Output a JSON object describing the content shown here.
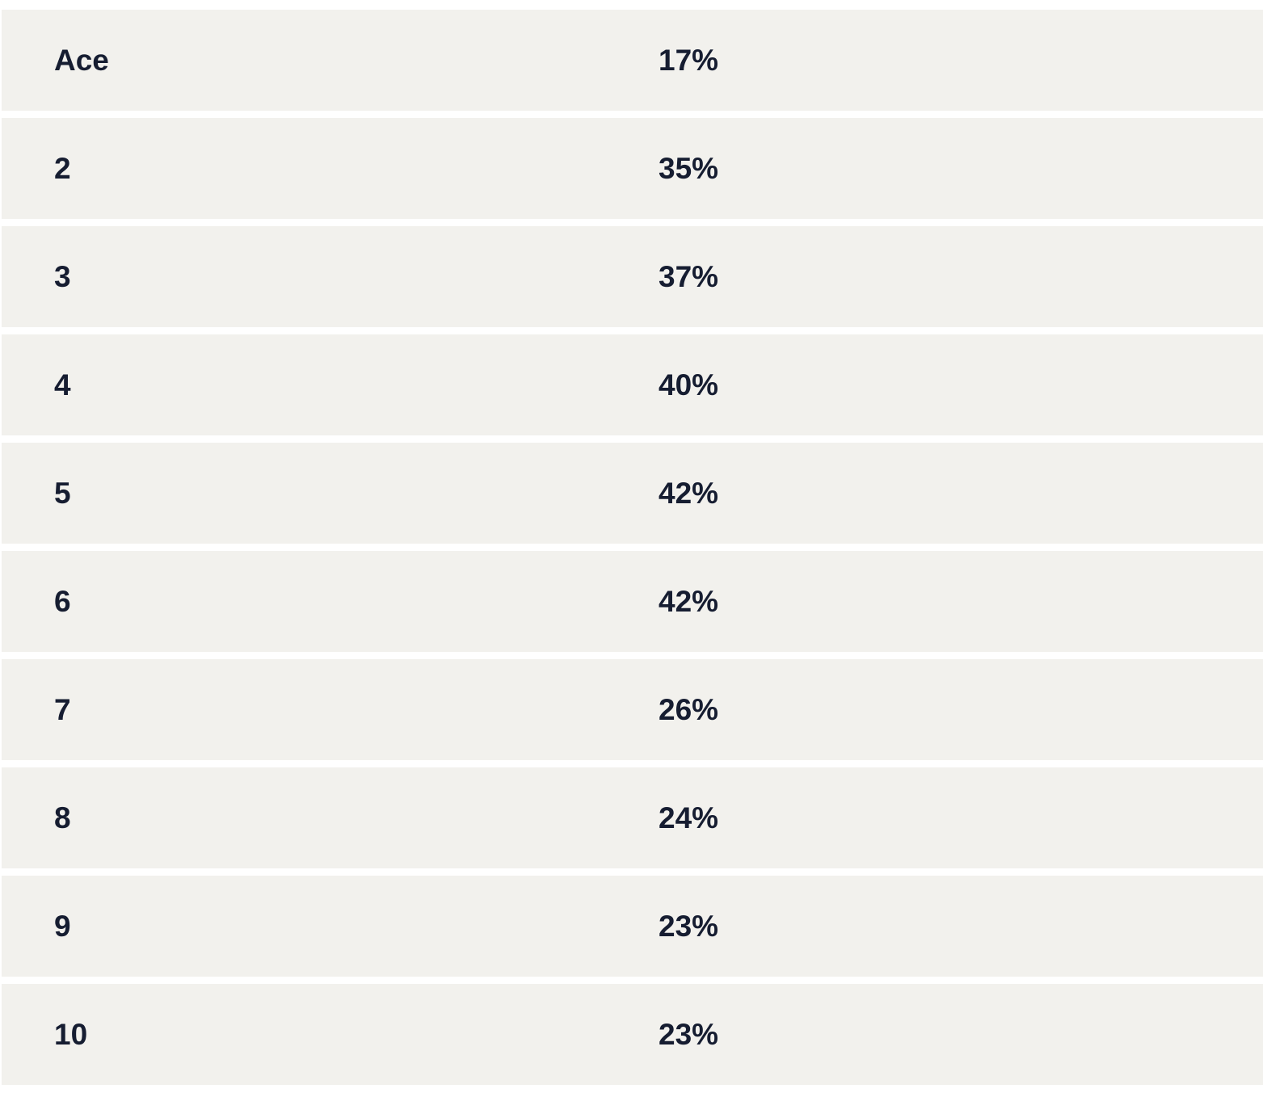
{
  "table": {
    "rows": [
      {
        "label": "Ace",
        "value": "17%"
      },
      {
        "label": "2",
        "value": "35%"
      },
      {
        "label": "3",
        "value": "37%"
      },
      {
        "label": "4",
        "value": "40%"
      },
      {
        "label": "5",
        "value": "42%"
      },
      {
        "label": "6",
        "value": "42%"
      },
      {
        "label": "7",
        "value": "26%"
      },
      {
        "label": "8",
        "value": "24%"
      },
      {
        "label": "9",
        "value": "23%"
      },
      {
        "label": "10",
        "value": "23%"
      }
    ]
  },
  "colors": {
    "page_bg": "#ffffff",
    "row_bg": "#f2f1ed",
    "text": "#161d31"
  },
  "chart_data": {
    "type": "table",
    "rows": [
      [
        "Ace",
        "17%"
      ],
      [
        "2",
        "35%"
      ],
      [
        "3",
        "37%"
      ],
      [
        "4",
        "40%"
      ],
      [
        "5",
        "42%"
      ],
      [
        "6",
        "42%"
      ],
      [
        "7",
        "26%"
      ],
      [
        "8",
        "24%"
      ],
      [
        "9",
        "23%"
      ],
      [
        "10",
        "23%"
      ]
    ]
  }
}
